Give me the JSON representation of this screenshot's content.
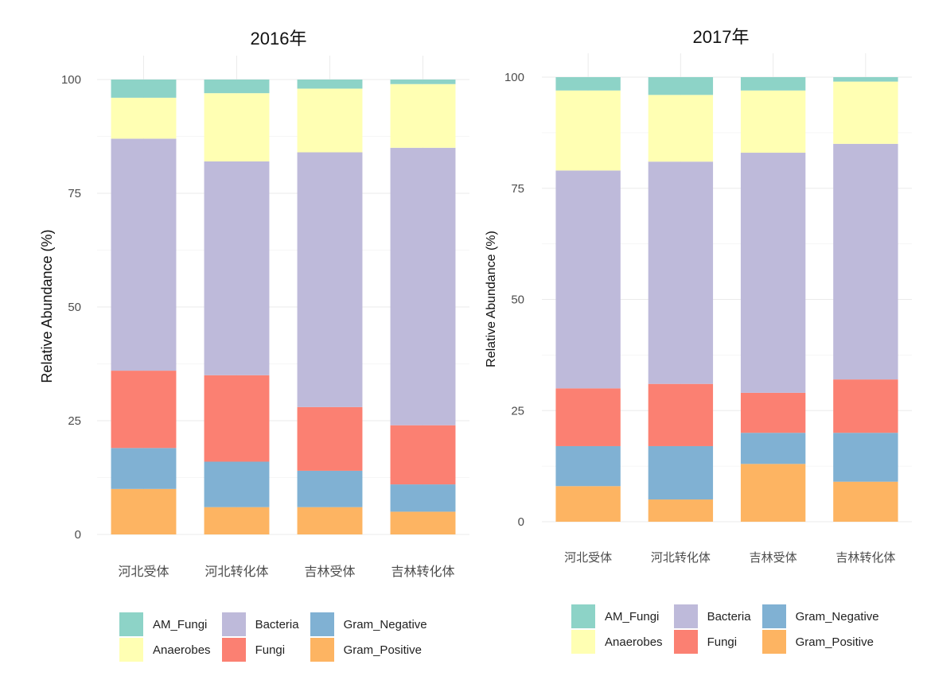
{
  "chart_data": [
    {
      "type": "stacked_bar",
      "title": "2016年",
      "ylabel": "Relative Abundance (%)",
      "xlabel": "",
      "ylim": [
        0,
        100
      ],
      "yticks": [
        "0",
        "25",
        "50",
        "75",
        "100"
      ],
      "categories": [
        "河北受体",
        "河北转化体",
        "吉林受体",
        "吉林转化体"
      ],
      "series": [
        {
          "name": "Gram_Positive",
          "color": "#FDB462",
          "values": [
            10,
            6,
            6,
            5
          ]
        },
        {
          "name": "Gram_Negative",
          "color": "#80B1D3",
          "values": [
            9,
            10,
            8,
            6
          ]
        },
        {
          "name": "Fungi",
          "color": "#FB8072",
          "values": [
            17,
            19,
            14,
            13
          ]
        },
        {
          "name": "Bacteria",
          "color": "#BEBADA",
          "values": [
            51,
            47,
            56,
            61
          ]
        },
        {
          "name": "Anaerobes",
          "color": "#FFFFB3",
          "values": [
            9,
            15,
            14,
            14
          ]
        },
        {
          "name": "AM_Fungi",
          "color": "#8DD3C7",
          "values": [
            4,
            3,
            2,
            1
          ]
        }
      ],
      "legend": {
        "position": "bottom",
        "items": [
          {
            "name": "AM_Fungi",
            "color": "#8DD3C7"
          },
          {
            "name": "Bacteria",
            "color": "#BEBADA"
          },
          {
            "name": "Gram_Negative",
            "color": "#80B1D3"
          },
          {
            "name": "Anaerobes",
            "color": "#FFFFB3"
          },
          {
            "name": "Fungi",
            "color": "#FB8072"
          },
          {
            "name": "Gram_Positive",
            "color": "#FDB462"
          }
        ]
      },
      "grid": true
    },
    {
      "type": "stacked_bar",
      "title": "2017年",
      "ylabel": "Relative Abundance (%)",
      "xlabel": "",
      "ylim": [
        0,
        100
      ],
      "yticks": [
        "0",
        "25",
        "50",
        "75",
        "100"
      ],
      "categories": [
        "河北受体",
        "河北转化体",
        "吉林受体",
        "吉林转化体"
      ],
      "series": [
        {
          "name": "Gram_Positive",
          "color": "#FDB462",
          "values": [
            8,
            5,
            13,
            9
          ]
        },
        {
          "name": "Gram_Negative",
          "color": "#80B1D3",
          "values": [
            9,
            12,
            7,
            11
          ]
        },
        {
          "name": "Fungi",
          "color": "#FB8072",
          "values": [
            13,
            14,
            9,
            12
          ]
        },
        {
          "name": "Bacteria",
          "color": "#BEBADA",
          "values": [
            49,
            50,
            54,
            53
          ]
        },
        {
          "name": "Anaerobes",
          "color": "#FFFFB3",
          "values": [
            18,
            15,
            14,
            14
          ]
        },
        {
          "name": "AM_Fungi",
          "color": "#8DD3C7",
          "values": [
            3,
            4,
            3,
            1
          ]
        }
      ],
      "legend": {
        "position": "bottom",
        "items": [
          {
            "name": "AM_Fungi",
            "color": "#8DD3C7"
          },
          {
            "name": "Bacteria",
            "color": "#BEBADA"
          },
          {
            "name": "Gram_Negative",
            "color": "#80B1D3"
          },
          {
            "name": "Anaerobes",
            "color": "#FFFFB3"
          },
          {
            "name": "Fungi",
            "color": "#FB8072"
          },
          {
            "name": "Gram_Positive",
            "color": "#FDB462"
          }
        ]
      },
      "grid": true
    }
  ]
}
